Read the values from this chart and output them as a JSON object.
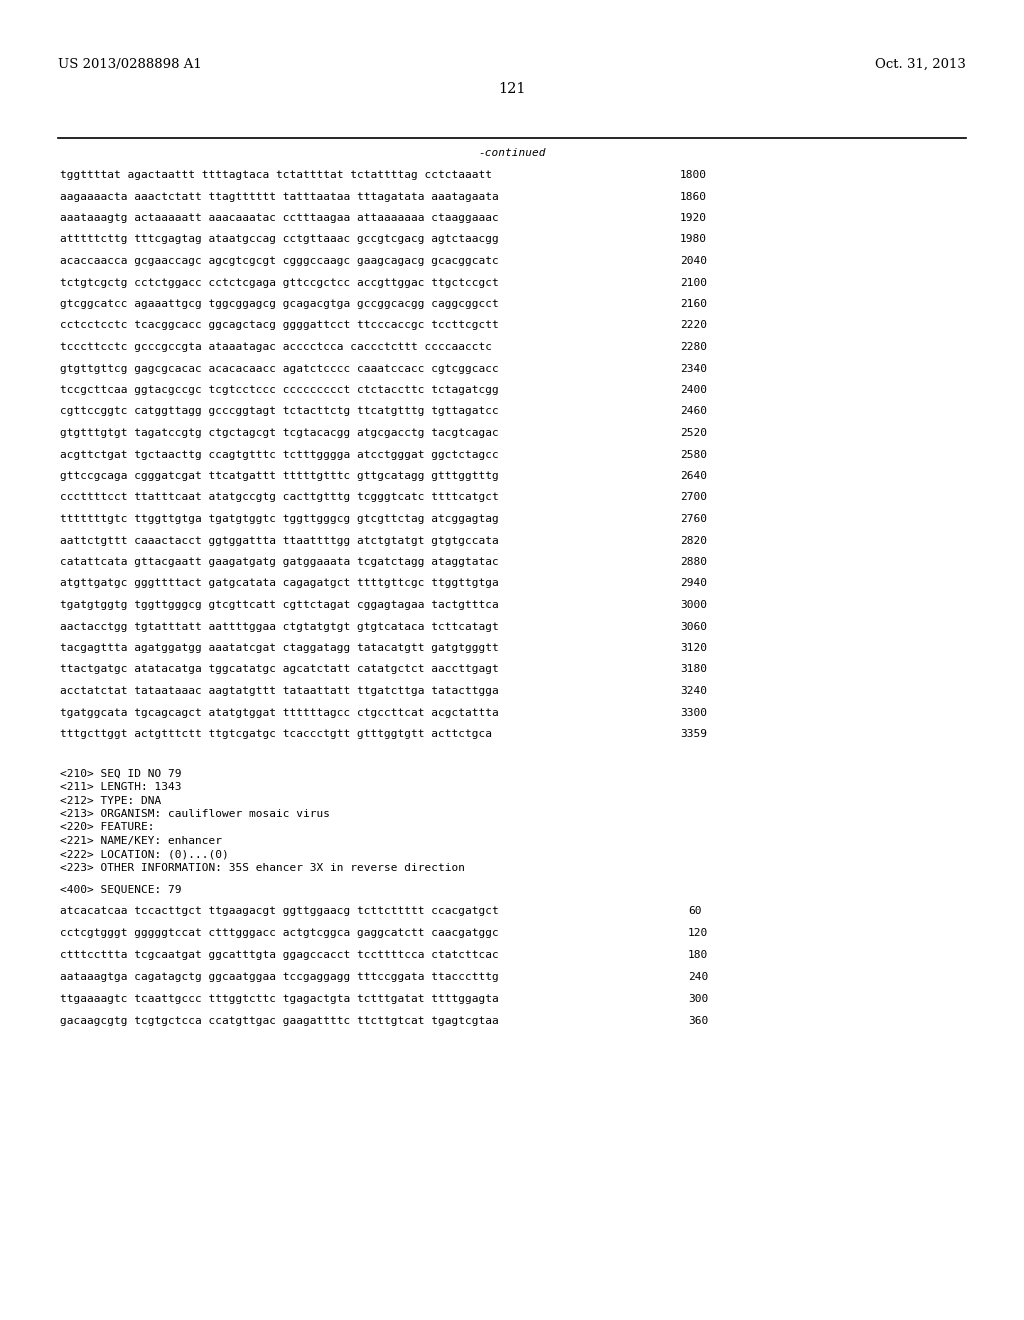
{
  "header_left": "US 2013/0288898 A1",
  "header_right": "Oct. 31, 2013",
  "page_number": "121",
  "continued_label": "-continued",
  "background_color": "#ffffff",
  "text_color": "#000000",
  "sequence_lines": [
    [
      "tggttttat agactaattt ttttagtaca tctattttat tctattttag cctctaaatt",
      "1800"
    ],
    [
      "aagaaaacta aaactctatt ttagtttttt tatttaataa tttagatata aaatagaata",
      "1860"
    ],
    [
      "aaataaagtg actaaaaatt aaacaaatac cctttaagaa attaaaaaaa ctaaggaaac",
      "1920"
    ],
    [
      "atttttcttg tttcgagtag ataatgccag cctgttaaac gccgtcgacg agtctaacgg",
      "1980"
    ],
    [
      "acaccaacca gcgaaccagc agcgtcgcgt cgggccaagc gaagcagacg gcacggcatc",
      "2040"
    ],
    [
      "tctgtcgctg cctctggacc cctctcgaga gttccgctcc accgttggac ttgctccgct",
      "2100"
    ],
    [
      "gtcggcatcc agaaattgcg tggcggagcg gcagacgtga gccggcacgg caggcggcct",
      "2160"
    ],
    [
      "cctcctcctc tcacggcacc ggcagctacg ggggattcct ttcccaccgc tccttcgctt",
      "2220"
    ],
    [
      "tcccttcctc gcccgccgta ataaatagac acccctcca caccctcttt ccccaacctc",
      "2280"
    ],
    [
      "gtgttgttcg gagcgcacac acacacaacc agatctcccc caaatccacc cgtcggcacc",
      "2340"
    ],
    [
      "tccgcttcaa ggtacgccgc tcgtcctccc ccccccccct ctctaccttc tctagatcgg",
      "2400"
    ],
    [
      "cgttccggtc catggttagg gcccggtagt tctacttctg ttcatgtttg tgttagatcc",
      "2460"
    ],
    [
      "gtgtttgtgt tagatccgtg ctgctagcgt tcgtacacgg atgcgacctg tacgtcagac",
      "2520"
    ],
    [
      "acgttctgat tgctaacttg ccagtgtttc tctttgggga atcctgggat ggctctagcc",
      "2580"
    ],
    [
      "gttccgcaga cgggatcgat ttcatgattt tttttgtttc gttgcatagg gtttggtttg",
      "2640"
    ],
    [
      "cccttttcct ttatttcaat atatgccgtg cacttgtttg tcgggtcatc ttttcatgct",
      "2700"
    ],
    [
      "tttttttgtc ttggttgtga tgatgtggtc tggttgggcg gtcgttctag atcggagtag",
      "2760"
    ],
    [
      "aattctgttt caaactacct ggtggattta ttaattttgg atctgtatgt gtgtgccata",
      "2820"
    ],
    [
      "catattcata gttacgaatt gaagatgatg gatggaaata tcgatctagg ataggtatac",
      "2880"
    ],
    [
      "atgttgatgc gggttttact gatgcatata cagagatgct ttttgttcgc ttggttgtga",
      "2940"
    ],
    [
      "tgatgtggtg tggttgggcg gtcgttcatt cgttctagat cggagtagaa tactgtttca",
      "3000"
    ],
    [
      "aactacctgg tgtatttatt aattttggaa ctgtatgtgt gtgtcataca tcttcatagt",
      "3060"
    ],
    [
      "tacgagttta agatggatgg aaatatcgat ctaggatagg tatacatgtt gatgtgggtt",
      "3120"
    ],
    [
      "ttactgatgc atatacatga tggcatatgc agcatctatt catatgctct aaccttgagt",
      "3180"
    ],
    [
      "acctatctat tataataaac aagtatgttt tataattatt ttgatcttga tatacttgga",
      "3240"
    ],
    [
      "tgatggcata tgcagcagct atatgtggat ttttttagcc ctgccttcat acgctattta",
      "3300"
    ],
    [
      "tttgcttggt actgtttctt ttgtcgatgc tcaccctgtt gtttggtgtt acttctgca",
      "3359"
    ]
  ],
  "metadata_lines": [
    "<210> SEQ ID NO 79",
    "<211> LENGTH: 1343",
    "<212> TYPE: DNA",
    "<213> ORGANISM: cauliflower mosaic virus",
    "<220> FEATURE:",
    "<221> NAME/KEY: enhancer",
    "<222> LOCATION: (0)...(0)",
    "<223> OTHER INFORMATION: 35S ehancer 3X in reverse direction"
  ],
  "seq400_label": "<400> SEQUENCE: 79",
  "seq400_lines": [
    [
      "atcacatcaa tccacttgct ttgaagacgt ggttggaacg tcttcttttt ccacgatgct",
      "60"
    ],
    [
      "cctcgtgggt gggggtccat ctttgggacc actgtcggca gaggcatctt caacgatggc",
      "120"
    ],
    [
      "ctttccttta tcgcaatgat ggcatttgta ggagccacct tccttttcca ctatcttcac",
      "180"
    ],
    [
      "aataaagtga cagatagctg ggcaatggaa tccgaggagg tttccggata ttaccctttg",
      "240"
    ],
    [
      "ttgaaaagtc tcaattgccc tttggtcttc tgagactgta tctttgatat ttttggagta",
      "300"
    ],
    [
      "gacaagcgtg tcgtgctcca ccatgttgac gaagattttc ttcttgtcat tgagtcgtaa",
      "360"
    ]
  ],
  "font_size_body": 8.0,
  "font_size_header": 9.5,
  "font_size_page": 10.5
}
